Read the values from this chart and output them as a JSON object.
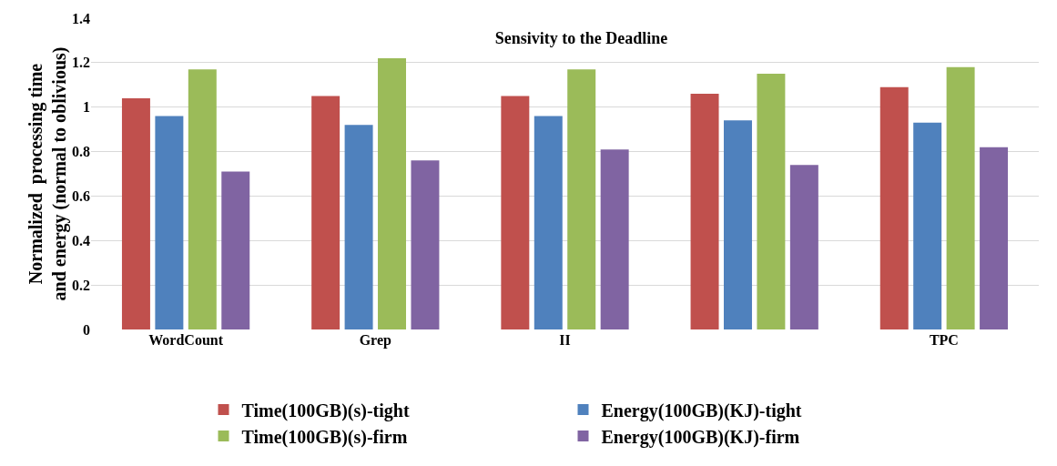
{
  "chart_data": {
    "type": "bar",
    "title": "Sensivity to the Deadline",
    "ylabel": "Normalized  processing time and energy (normal to oblivious)",
    "categories": [
      "WordCount",
      "Grep",
      "II",
      null,
      "TPC"
    ],
    "series": [
      {
        "name": "Time(100GB)(s)-tight",
        "color": "#c0504d",
        "values": [
          1.04,
          1.05,
          1.05,
          1.06,
          1.09
        ]
      },
      {
        "name": "Energy(100GB)(KJ)-tight",
        "color": "#4f81bd",
        "values": [
          0.96,
          0.92,
          0.96,
          0.94,
          0.93
        ]
      },
      {
        "name": "Time(100GB)(s)-firm",
        "color": "#9bbb59",
        "values": [
          1.17,
          1.22,
          1.17,
          1.15,
          1.18
        ]
      },
      {
        "name": "Energy(100GB)(KJ)-firm",
        "color": "#8064a2",
        "values": [
          0.71,
          0.76,
          0.81,
          0.74,
          0.82
        ]
      }
    ],
    "ylim": [
      0,
      1.4
    ],
    "yticks": [
      0,
      0.2,
      0.4,
      0.6,
      0.8,
      1,
      1.2,
      1.4
    ],
    "grid": "y",
    "legend": "bottom"
  }
}
